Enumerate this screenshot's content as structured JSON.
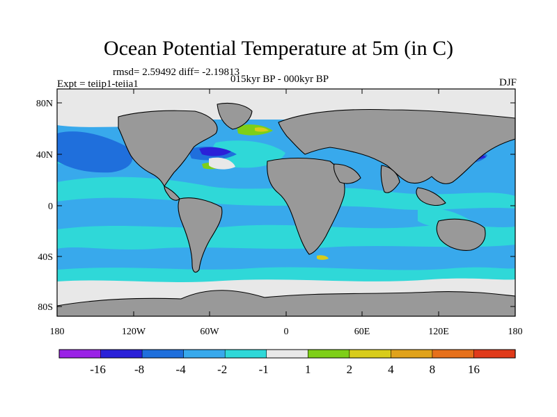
{
  "title": "Ocean Potential Temperature at 5m (in C)",
  "stats": {
    "rmsd": "rmsd= 2.59492 diff= -2.19813",
    "experiment": "Expt = teiip1-teiia1",
    "period": "015kyr BP - 000kyr BP",
    "season": "DJF"
  },
  "axes": {
    "lat_ticks": [
      "80N",
      "40N",
      "0",
      "40S",
      "80S"
    ],
    "lon_ticks": [
      "180",
      "120W",
      "60W",
      "0",
      "60E",
      "120E",
      "180"
    ]
  },
  "colorbar": {
    "colors": [
      "#9a22e6",
      "#2a20d8",
      "#1f6fdc",
      "#38a9ec",
      "#2fd8d8",
      "#e8e8e8",
      "#7ecf18",
      "#d8cc1a",
      "#e0a21a",
      "#e6701a",
      "#e03a1a"
    ],
    "labels": [
      "-16",
      "-8",
      "-4",
      "-2",
      "-1",
      "1",
      "2",
      "4",
      "8",
      "16"
    ]
  },
  "colors": {
    "land": "#999999",
    "ocean_main": "#38a9ec",
    "ocean_light": "#2fd8d8",
    "sea_ice": "#e8e8e8",
    "ocean_dark": "#1f6fdc"
  }
}
